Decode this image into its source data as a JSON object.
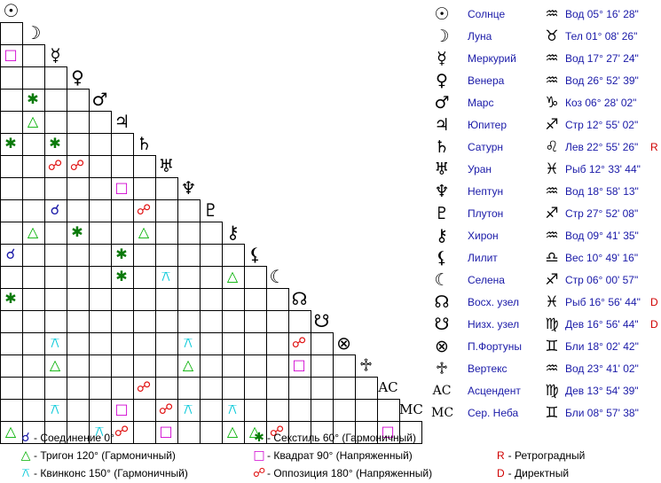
{
  "planets": [
    {
      "glyph": "☉",
      "name": "Солнце",
      "zodiac": "♒",
      "position": "Вод 05° 16' 28\"",
      "flag": ""
    },
    {
      "glyph": "☽",
      "name": "Луна",
      "zodiac": "♉",
      "position": "Тел 01° 08' 26\"",
      "flag": ""
    },
    {
      "glyph": "☿",
      "name": "Меркурий",
      "zodiac": "♒",
      "position": "Вод 17° 27' 24\"",
      "flag": ""
    },
    {
      "glyph": "♀",
      "name": "Венера",
      "zodiac": "♒",
      "position": "Вод 26° 52' 39\"",
      "flag": ""
    },
    {
      "glyph": "♂",
      "name": "Марс",
      "zodiac": "♑",
      "position": "Коз 06° 28' 02\"",
      "flag": ""
    },
    {
      "glyph": "♃",
      "name": "Юпитер",
      "zodiac": "♐",
      "position": "Стр 12° 55' 02\"",
      "flag": ""
    },
    {
      "glyph": "♄",
      "name": "Сатурн",
      "zodiac": "♌",
      "position": "Лев 22° 55' 26\"",
      "flag": "R"
    },
    {
      "glyph": "♅",
      "name": "Уран",
      "zodiac": "♓",
      "position": "Рыб 12° 33' 44\"",
      "flag": ""
    },
    {
      "glyph": "♆",
      "name": "Нептун",
      "zodiac": "♒",
      "position": "Вод 18° 58' 13\"",
      "flag": ""
    },
    {
      "glyph": "♇",
      "name": "Плутон",
      "zodiac": "♐",
      "position": "Стр 27° 52' 08\"",
      "flag": ""
    },
    {
      "glyph": "⚷",
      "name": "Хирон",
      "zodiac": "♒",
      "position": "Вод 09° 41' 35\"",
      "flag": ""
    },
    {
      "glyph": "⚸",
      "name": "Лилит",
      "zodiac": "♎",
      "position": "Вес 10° 49' 16\"",
      "flag": ""
    },
    {
      "glyph": "☾",
      "name": "Селена",
      "zodiac": "♐",
      "position": "Стр 06° 00' 57\"",
      "flag": ""
    },
    {
      "glyph": "☊",
      "name": "Восх. узел",
      "zodiac": "♓",
      "position": "Рыб 16° 56' 44\"",
      "flag": "D"
    },
    {
      "glyph": "☋",
      "name": "Низх. узел",
      "zodiac": "♍",
      "position": "Дев 16° 56' 44\"",
      "flag": "D"
    },
    {
      "glyph": "⊗",
      "name": "П.Фортуны",
      "zodiac": "♊",
      "position": "Бли 18° 02' 42\"",
      "flag": ""
    },
    {
      "glyph": "♱",
      "name": "Вертекс",
      "zodiac": "♒",
      "position": "Вод 23° 41' 02\"",
      "flag": ""
    },
    {
      "glyph": "AC",
      "name": "Асцендент",
      "zodiac": "♍",
      "position": "Дев 13° 54' 39\"",
      "flag": ""
    },
    {
      "glyph": "MC",
      "name": "Сер. Неба",
      "zodiac": "♊",
      "position": "Бли 08° 57' 38\"",
      "flag": ""
    }
  ],
  "aspect_types": {
    "conj": {
      "symbol": "☌",
      "color": "#1a1aa8"
    },
    "sext": {
      "symbol": "✱",
      "color": "#0a7a0a"
    },
    "trine": {
      "symbol": "△",
      "color": "#00b000"
    },
    "square": {
      "symbol": "□",
      "color": "#d000d0"
    },
    "quinc": {
      "symbol": "⚻",
      "color": "#00c8d8"
    },
    "opp": {
      "symbol": "☍",
      "color": "#e01010"
    }
  },
  "aspects": [
    {
      "row": 1,
      "col": 0,
      "type": "square"
    },
    {
      "row": 3,
      "col": 1,
      "type": "sext"
    },
    {
      "row": 4,
      "col": 1,
      "type": "trine"
    },
    {
      "row": 5,
      "col": 0,
      "type": "sext"
    },
    {
      "row": 5,
      "col": 2,
      "type": "sext"
    },
    {
      "row": 6,
      "col": 2,
      "type": "opp"
    },
    {
      "row": 6,
      "col": 3,
      "type": "opp"
    },
    {
      "row": 7,
      "col": 5,
      "type": "square"
    },
    {
      "row": 8,
      "col": 2,
      "type": "conj"
    },
    {
      "row": 8,
      "col": 6,
      "type": "opp"
    },
    {
      "row": 9,
      "col": 1,
      "type": "trine"
    },
    {
      "row": 9,
      "col": 3,
      "type": "sext"
    },
    {
      "row": 9,
      "col": 6,
      "type": "trine"
    },
    {
      "row": 10,
      "col": 0,
      "type": "conj"
    },
    {
      "row": 10,
      "col": 5,
      "type": "sext"
    },
    {
      "row": 11,
      "col": 5,
      "type": "sext"
    },
    {
      "row": 11,
      "col": 7,
      "type": "quinc"
    },
    {
      "row": 11,
      "col": 10,
      "type": "trine"
    },
    {
      "row": 12,
      "col": 0,
      "type": "sext"
    },
    {
      "row": 14,
      "col": 2,
      "type": "quinc"
    },
    {
      "row": 14,
      "col": 8,
      "type": "quinc"
    },
    {
      "row": 14,
      "col": 13,
      "type": "opp"
    },
    {
      "row": 15,
      "col": 2,
      "type": "trine"
    },
    {
      "row": 15,
      "col": 8,
      "type": "trine"
    },
    {
      "row": 15,
      "col": 13,
      "type": "square"
    },
    {
      "row": 16,
      "col": 6,
      "type": "opp"
    },
    {
      "row": 17,
      "col": 2,
      "type": "quinc"
    },
    {
      "row": 17,
      "col": 5,
      "type": "square"
    },
    {
      "row": 17,
      "col": 7,
      "type": "opp"
    },
    {
      "row": 17,
      "col": 8,
      "type": "quinc"
    },
    {
      "row": 17,
      "col": 10,
      "type": "quinc"
    },
    {
      "row": 18,
      "col": 0,
      "type": "trine"
    },
    {
      "row": 18,
      "col": 4,
      "type": "quinc"
    },
    {
      "row": 18,
      "col": 5,
      "type": "opp"
    },
    {
      "row": 18,
      "col": 7,
      "type": "square"
    },
    {
      "row": 18,
      "col": 10,
      "type": "trine"
    },
    {
      "row": 18,
      "col": 11,
      "type": "trine"
    },
    {
      "row": 18,
      "col": 12,
      "type": "opp"
    },
    {
      "row": 18,
      "col": 17,
      "type": "square"
    }
  ],
  "legend": [
    {
      "type": "conj",
      "label": "- Соединение 0°"
    },
    {
      "type": "sext",
      "label": "- Секстиль 60° (Гармоничный)"
    },
    {
      "type": "trine",
      "label": "- Тригон 120° (Гармоничный)"
    },
    {
      "type": "square",
      "label": "- Квадрат 90° (Напряженный)"
    },
    {
      "type": "quinc",
      "label": "- Квинконс 150° (Гармоничный)"
    },
    {
      "type": "opp",
      "label": "- Оппозиция 180° (Напряженный)"
    }
  ],
  "flag_legend": [
    {
      "code": "R",
      "label": "- Ретроградный"
    },
    {
      "code": "D",
      "label": "- Директный"
    }
  ]
}
